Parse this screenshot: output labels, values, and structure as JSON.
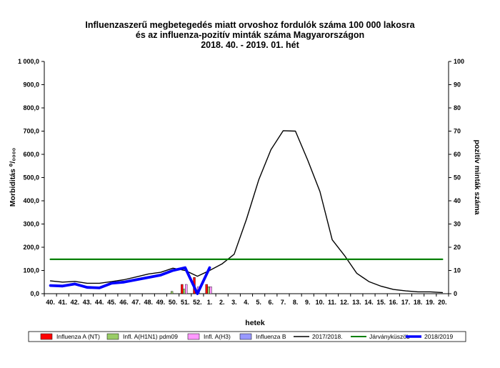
{
  "chart_data": {
    "type": "line",
    "title": [
      "Influenzaszerű megbetegedés miatt orvoshoz fordulók száma 100 000 lakosra",
      "és az influenza-pozitív minták száma Magyarországon",
      "2018. 40. - 2019. 01. hét"
    ],
    "xlabel": "hetek",
    "ylabel": "Morbiditás ⁰/₀₀₀₀",
    "y2label": "pozitív minták száma",
    "ylim": [
      0,
      1000
    ],
    "y2lim": [
      0,
      100
    ],
    "yticks": [
      "0,0",
      "100,0",
      "200,0",
      "300,0",
      "400,0",
      "500,0",
      "600,0",
      "700,0",
      "800,0",
      "900,0",
      "1 000,0"
    ],
    "y2ticks": [
      "0",
      "10",
      "20",
      "30",
      "40",
      "50",
      "60",
      "70",
      "80",
      "90",
      "100"
    ],
    "categories": [
      "40.",
      "41.",
      "42.",
      "43.",
      "44.",
      "45.",
      "46.",
      "47.",
      "48.",
      "49.",
      "50.",
      "51.",
      "52.",
      "1.",
      "2.",
      "3.",
      "4.",
      "5.",
      "6.",
      "7.",
      "8.",
      "9.",
      "10.",
      "11.",
      "12.",
      "13.",
      "14.",
      "15.",
      "16.",
      "17.",
      "18.",
      "19.",
      "20."
    ],
    "grid": false,
    "legend": "bottom",
    "lines": [
      {
        "name": "2017/2018.",
        "color": "#000000",
        "values": [
          55,
          50,
          53,
          45,
          45,
          52,
          60,
          72,
          85,
          92,
          110,
          100,
          75,
          100,
          128,
          170,
          320,
          490,
          620,
          702,
          700,
          575,
          440,
          232,
          165,
          88,
          52,
          32,
          18,
          12,
          8,
          8,
          5
        ]
      },
      {
        "name": "Járványküszöb",
        "color": "#008000",
        "values": [
          148,
          148,
          148,
          148,
          148,
          148,
          148,
          148,
          148,
          148,
          148,
          148,
          148,
          148,
          148,
          148,
          148,
          148,
          148,
          148,
          148,
          148,
          148,
          148,
          148,
          148,
          148,
          148,
          148,
          148,
          148,
          148,
          148
        ]
      },
      {
        "name": "2018/2019",
        "color": "#0000ff",
        "values": [
          35,
          33,
          42,
          27,
          25,
          45,
          50,
          60,
          70,
          80,
          100,
          112,
          0,
          112
        ]
      }
    ],
    "bars": [
      {
        "name": "Influenza A (NT)",
        "color": "#ff0000",
        "values": [
          0,
          0,
          0,
          0,
          0,
          0,
          0,
          0,
          0,
          0,
          0,
          4,
          7,
          4
        ]
      },
      {
        "name": "Infl. A(H1N1) pdm09",
        "color": "#99cc66",
        "values": [
          0,
          0,
          0,
          0,
          0,
          0,
          0,
          0,
          0,
          0,
          1,
          2,
          1,
          3
        ]
      },
      {
        "name": "Infl. A(H3)",
        "color": "#ff99ff",
        "values": [
          0,
          0,
          0,
          0,
          0,
          0,
          0,
          0,
          0,
          0,
          0,
          4,
          3,
          3
        ]
      },
      {
        "name": "Influenza B",
        "color": "#9999ff",
        "values": [
          0,
          0,
          0,
          0,
          0,
          0,
          0,
          0,
          0,
          0,
          0,
          0,
          0,
          0
        ]
      }
    ],
    "legend_order": [
      "Influenza A (NT)",
      "Infl. A(H1N1) pdm09",
      "Infl. A(H3)",
      "Influenza B",
      "2017/2018.",
      "Járványküszöb",
      "2018/2019"
    ]
  }
}
